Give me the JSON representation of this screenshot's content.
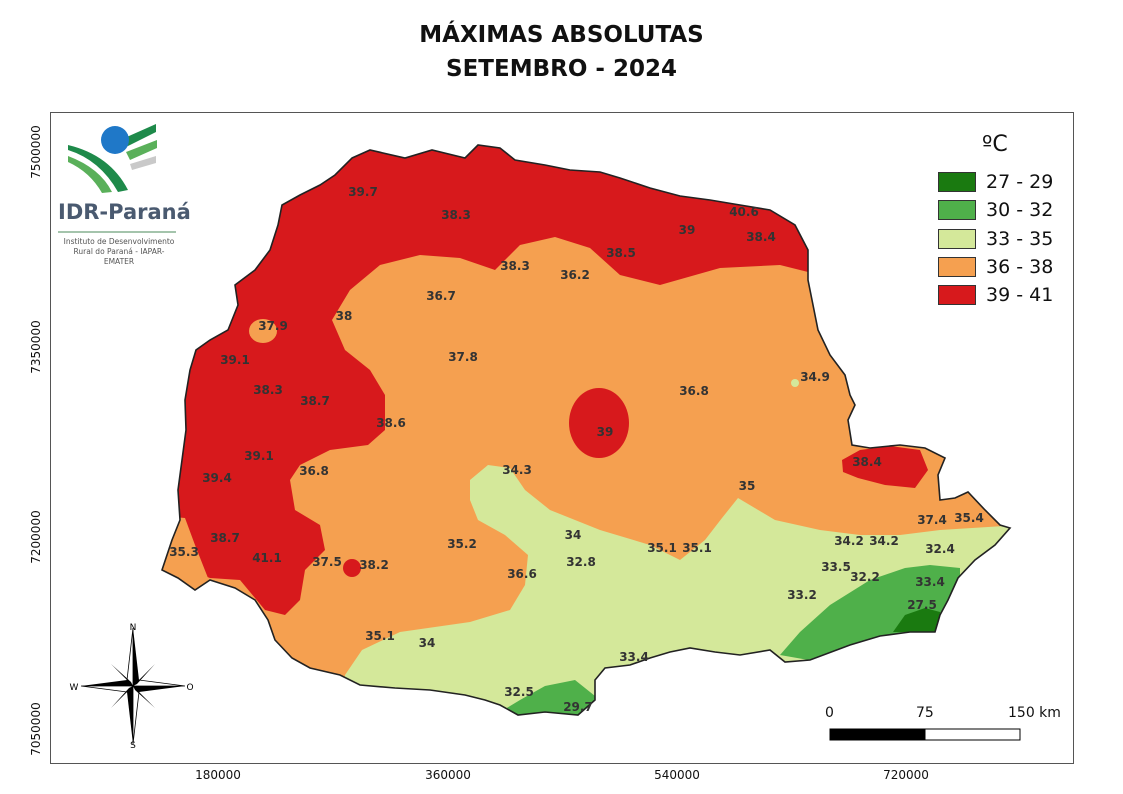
{
  "title_line1": "MÁXIMAS ABSOLUTAS",
  "title_line2": "SETEMBRO - 2024",
  "legend": {
    "title": "ºC",
    "items": [
      {
        "label": "27 - 29",
        "color": "#1a7a10"
      },
      {
        "label": "30 - 32",
        "color": "#4fb04a"
      },
      {
        "label": "33 - 35",
        "color": "#d4e89a"
      },
      {
        "label": "36 - 38",
        "color": "#f5a050"
      },
      {
        "label": "39 - 41",
        "color": "#d7191c"
      }
    ]
  },
  "axes": {
    "y_ticks": [
      "7500000",
      "7350000",
      "7200000",
      "7050000"
    ],
    "x_ticks": [
      "180000",
      "360000",
      "540000",
      "720000"
    ]
  },
  "scale_bar": {
    "labels": [
      "0",
      "75",
      "150 km"
    ]
  },
  "compass": {
    "n": "N",
    "s": "S",
    "e": "O",
    "w": "W"
  },
  "logo": {
    "name": "IDR-Paraná",
    "subtitle_line1": "Instituto de Desenvolvimento",
    "subtitle_line2": "Rural do Paraná - IAPAR-EMATER"
  },
  "stations": [
    {
      "value": "39.7"
    },
    {
      "value": "38.3"
    },
    {
      "value": "39"
    },
    {
      "value": "40.6"
    },
    {
      "value": "38.4"
    },
    {
      "value": "38.5"
    },
    {
      "value": "38.3"
    },
    {
      "value": "36.2"
    },
    {
      "value": "36.7"
    },
    {
      "value": "37.9"
    },
    {
      "value": "38"
    },
    {
      "value": "39.1"
    },
    {
      "value": "37.8"
    },
    {
      "value": "38.3"
    },
    {
      "value": "38.7"
    },
    {
      "value": "36.8"
    },
    {
      "value": "34.9"
    },
    {
      "value": "38.6"
    },
    {
      "value": "39"
    },
    {
      "value": "39.1"
    },
    {
      "value": "38.4"
    },
    {
      "value": "36.8"
    },
    {
      "value": "34.3"
    },
    {
      "value": "39.4"
    },
    {
      "value": "35"
    },
    {
      "value": "37.4"
    },
    {
      "value": "35.4"
    },
    {
      "value": "34"
    },
    {
      "value": "38.7"
    },
    {
      "value": "35.2"
    },
    {
      "value": "35.1"
    },
    {
      "value": "35.1"
    },
    {
      "value": "34.2"
    },
    {
      "value": "34.2"
    },
    {
      "value": "35.3"
    },
    {
      "value": "41.1"
    },
    {
      "value": "37.5"
    },
    {
      "value": "38.2"
    },
    {
      "value": "32.8"
    },
    {
      "value": "32.4"
    },
    {
      "value": "36.6"
    },
    {
      "value": "33.5"
    },
    {
      "value": "32.2"
    },
    {
      "value": "33.4"
    },
    {
      "value": "33.2"
    },
    {
      "value": "27.5"
    },
    {
      "value": "35.1"
    },
    {
      "value": "34"
    },
    {
      "value": "33.4"
    },
    {
      "value": "32.5"
    },
    {
      "value": "29.7"
    }
  ]
}
